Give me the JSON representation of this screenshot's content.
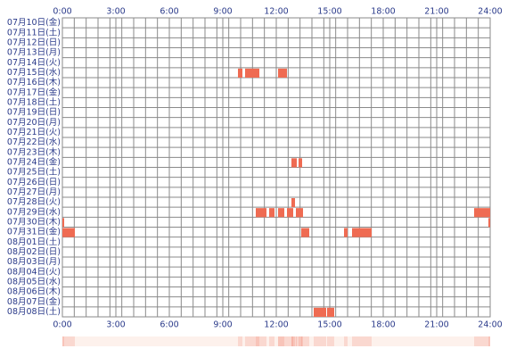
{
  "chart_data": {
    "type": "timeline",
    "xlim": [
      0,
      24
    ],
    "xticks": [
      {
        "value": 0,
        "label": "0:00"
      },
      {
        "value": 3,
        "label": "3:00"
      },
      {
        "value": 6,
        "label": "6:00"
      },
      {
        "value": 9,
        "label": "9:00"
      },
      {
        "value": 12,
        "label": "12:00"
      },
      {
        "value": 15,
        "label": "15:00"
      },
      {
        "value": 18,
        "label": "18:00"
      },
      {
        "value": 21,
        "label": "21:00"
      },
      {
        "value": 24,
        "label": "24:00"
      }
    ],
    "color": "#ef6b52",
    "rows": [
      {
        "label": "07月10日(金)",
        "segments": []
      },
      {
        "label": "07月11日(土)",
        "segments": []
      },
      {
        "label": "07月12日(日)",
        "segments": []
      },
      {
        "label": "07月13日(月)",
        "segments": []
      },
      {
        "label": "07月14日(火)",
        "segments": []
      },
      {
        "label": "07月15日(水)",
        "segments": [
          [
            9.85,
            10.1
          ],
          [
            10.25,
            11.05
          ],
          [
            12.1,
            12.6
          ]
        ]
      },
      {
        "label": "07月16日(木)",
        "segments": []
      },
      {
        "label": "07月17日(金)",
        "segments": []
      },
      {
        "label": "07月18日(土)",
        "segments": []
      },
      {
        "label": "07月19日(日)",
        "segments": []
      },
      {
        "label": "07月20日(月)",
        "segments": []
      },
      {
        "label": "07月21日(火)",
        "segments": []
      },
      {
        "label": "07月22日(水)",
        "segments": []
      },
      {
        "label": "07月23日(木)",
        "segments": []
      },
      {
        "label": "07月24日(金)",
        "segments": [
          [
            12.85,
            13.15
          ],
          [
            13.25,
            13.45
          ]
        ]
      },
      {
        "label": "07月25日(土)",
        "segments": []
      },
      {
        "label": "07月26日(日)",
        "segments": []
      },
      {
        "label": "07月27日(月)",
        "segments": []
      },
      {
        "label": "07月28日(火)",
        "segments": [
          [
            12.85,
            13.05
          ]
        ]
      },
      {
        "label": "07月29日(水)",
        "segments": [
          [
            10.85,
            11.45
          ],
          [
            11.6,
            11.9
          ],
          [
            12.1,
            12.45
          ],
          [
            12.6,
            12.95
          ],
          [
            13.1,
            13.5
          ],
          [
            23.1,
            24
          ]
        ]
      },
      {
        "label": "07月30日(木)",
        "segments": [
          [
            0,
            0.1
          ],
          [
            23.9,
            24
          ]
        ]
      },
      {
        "label": "07月31日(金)",
        "segments": [
          [
            0,
            0.7
          ],
          [
            13.4,
            13.85
          ],
          [
            15.8,
            16.0
          ],
          [
            16.25,
            17.35
          ]
        ]
      },
      {
        "label": "08月01日(土)",
        "segments": []
      },
      {
        "label": "08月02日(日)",
        "segments": []
      },
      {
        "label": "08月03日(月)",
        "segments": []
      },
      {
        "label": "08月04日(火)",
        "segments": []
      },
      {
        "label": "08月05日(水)",
        "segments": []
      },
      {
        "label": "08月06日(木)",
        "segments": []
      },
      {
        "label": "08月07日(金)",
        "segments": []
      },
      {
        "label": "08月08日(土)",
        "segments": [
          [
            14.1,
            14.8
          ],
          [
            14.85,
            15.25
          ]
        ]
      }
    ]
  }
}
